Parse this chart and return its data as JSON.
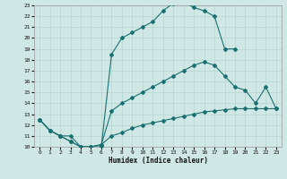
{
  "title": "",
  "xlabel": "Humidex (Indice chaleur)",
  "xlim": [
    -0.5,
    23.5
  ],
  "ylim": [
    10,
    23
  ],
  "xticks": [
    0,
    1,
    2,
    3,
    4,
    5,
    6,
    7,
    8,
    9,
    10,
    11,
    12,
    13,
    14,
    15,
    16,
    17,
    18,
    19,
    20,
    21,
    22,
    23
  ],
  "yticks": [
    10,
    11,
    12,
    13,
    14,
    15,
    16,
    17,
    18,
    19,
    20,
    21,
    22,
    23
  ],
  "bg_color": "#cfe8e5",
  "grid_color": "#b8d4d0",
  "line_color": "#1a7070",
  "lines": [
    {
      "x": [
        0,
        1,
        2,
        3,
        4,
        5,
        6,
        7,
        8,
        9,
        10,
        11,
        12,
        13,
        14,
        15,
        16,
        17,
        18,
        19
      ],
      "y": [
        12.5,
        11.5,
        11.0,
        11.0,
        10.0,
        10.0,
        10.0,
        18.5,
        20.0,
        20.5,
        21.0,
        21.5,
        22.5,
        23.2,
        23.3,
        22.8,
        22.5,
        22.0,
        19.0,
        19.0
      ]
    },
    {
      "x": [
        0,
        1,
        2,
        3,
        4,
        5,
        6,
        7,
        8,
        9,
        10,
        11,
        12,
        13,
        14,
        15,
        16,
        17,
        18,
        19,
        20,
        21,
        22,
        23
      ],
      "y": [
        12.5,
        11.5,
        11.0,
        10.5,
        10.0,
        10.0,
        10.2,
        13.3,
        14.0,
        14.5,
        15.0,
        15.5,
        16.0,
        16.5,
        17.0,
        17.5,
        17.8,
        17.5,
        16.5,
        15.5,
        15.2,
        14.0,
        15.5,
        13.5
      ]
    },
    {
      "x": [
        0,
        1,
        2,
        3,
        4,
        5,
        6,
        7,
        8,
        9,
        10,
        11,
        12,
        13,
        14,
        15,
        16,
        17,
        18,
        19,
        20,
        21,
        22,
        23
      ],
      "y": [
        12.5,
        11.5,
        11.0,
        10.5,
        10.0,
        10.0,
        10.2,
        11.0,
        11.3,
        11.7,
        12.0,
        12.2,
        12.4,
        12.6,
        12.8,
        13.0,
        13.2,
        13.3,
        13.4,
        13.5,
        13.5,
        13.5,
        13.5,
        13.5
      ]
    }
  ]
}
